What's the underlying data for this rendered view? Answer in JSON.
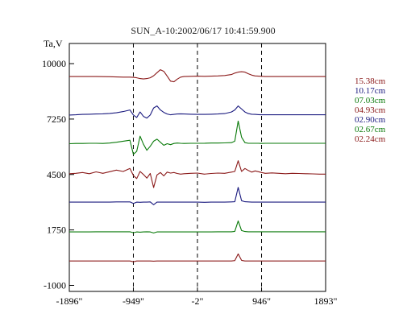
{
  "chart_data": {
    "type": "line",
    "title": "SUN_A-10:2002/06/17 10:41:59.900",
    "ylabel": "Ta,V",
    "xlim": [
      -1896,
      1893
    ],
    "ylim": [
      -1300,
      11000
    ],
    "yticks": [
      10000,
      7250,
      4500,
      1750,
      -1000
    ],
    "ytick_labels": [
      "10000",
      "7250",
      "4500",
      "1750",
      "-1000"
    ],
    "xticks": [
      -1896,
      -949,
      -2,
      946,
      1893
    ],
    "xtick_labels": [
      "-1896\"",
      "-949\"",
      "-2\"",
      "946\"",
      "1893\""
    ],
    "vlines": [
      -949,
      -2,
      946
    ],
    "x": [
      -1896,
      -1800,
      -1700,
      -1600,
      -1500,
      -1400,
      -1300,
      -1200,
      -1100,
      -1000,
      -949,
      -900,
      -850,
      -800,
      -750,
      -700,
      -650,
      -600,
      -550,
      -500,
      -450,
      -400,
      -350,
      -300,
      -250,
      -200,
      -100,
      -2,
      100,
      200,
      300,
      400,
      500,
      550,
      600,
      650,
      700,
      750,
      800,
      850,
      900,
      946,
      1000,
      1100,
      1200,
      1300,
      1400,
      1500,
      1600,
      1700,
      1800,
      1893
    ],
    "series": [
      {
        "name": "15.38cm",
        "color": "#8b1a1a",
        "values": [
          9360,
          9360,
          9360,
          9360,
          9360,
          9355,
          9350,
          9340,
          9330,
          9330,
          9320,
          9300,
          9260,
          9240,
          9260,
          9300,
          9400,
          9550,
          9700,
          9620,
          9380,
          9130,
          9100,
          9230,
          9330,
          9360,
          9370,
          9380,
          9370,
          9380,
          9390,
          9410,
          9460,
          9530,
          9580,
          9600,
          9580,
          9500,
          9430,
          9390,
          9380,
          9370,
          9360,
          9360,
          9360,
          9360,
          9360,
          9360,
          9360,
          9360,
          9360,
          9360
        ]
      },
      {
        "name": "10.17cm",
        "color": "#1a1a7f",
        "values": [
          7450,
          7460,
          7480,
          7490,
          7500,
          7510,
          7530,
          7560,
          7620,
          7700,
          7450,
          7330,
          7600,
          7380,
          7300,
          7450,
          7800,
          7900,
          7700,
          7580,
          7500,
          7460,
          7480,
          7500,
          7510,
          7500,
          7490,
          7480,
          7480,
          7490,
          7500,
          7520,
          7600,
          7700,
          7900,
          7750,
          7600,
          7520,
          7490,
          7480,
          7470,
          7460,
          7460,
          7460,
          7460,
          7460,
          7460,
          7460,
          7460,
          7460,
          7460,
          7460
        ]
      },
      {
        "name": "07.03cm",
        "color": "#0a7a0a",
        "values": [
          6030,
          6040,
          6040,
          6050,
          6050,
          6040,
          6060,
          6100,
          6150,
          6200,
          5500,
          5650,
          6400,
          6000,
          5700,
          5900,
          6150,
          6250,
          6100,
          5950,
          6030,
          5980,
          6040,
          6060,
          6050,
          6040,
          6050,
          6050,
          6050,
          6060,
          6060,
          6070,
          6080,
          6150,
          7150,
          6350,
          6080,
          6050,
          6050,
          6050,
          6050,
          6040,
          6050,
          6050,
          6050,
          6050,
          6050,
          6050,
          6050,
          6050,
          6050,
          6050
        ]
      },
      {
        "name": "04.93cm",
        "color": "#8b1a1a",
        "values": [
          4540,
          4560,
          4600,
          4540,
          4630,
          4560,
          4640,
          4720,
          4650,
          4800,
          4450,
          4300,
          4650,
          4500,
          4320,
          4550,
          3850,
          4480,
          4600,
          4430,
          4620,
          4570,
          4600,
          4550,
          4520,
          4540,
          4560,
          4570,
          4520,
          4550,
          4570,
          4560,
          4620,
          4650,
          5180,
          4650,
          4800,
          4700,
          4620,
          4680,
          4640,
          4600,
          4560,
          4580,
          4560,
          4540,
          4560,
          4550,
          4540,
          4530,
          4520,
          4520
        ]
      },
      {
        "name": "02.90cm",
        "color": "#1a1a7f",
        "values": [
          3130,
          3130,
          3130,
          3130,
          3130,
          3130,
          3130,
          3140,
          3140,
          3140,
          3060,
          3130,
          3120,
          3130,
          3130,
          3140,
          3000,
          3130,
          3130,
          3130,
          3130,
          3130,
          3130,
          3130,
          3130,
          3130,
          3130,
          3130,
          3120,
          3130,
          3130,
          3130,
          3140,
          3150,
          3860,
          3200,
          3150,
          3140,
          3130,
          3130,
          3130,
          3130,
          3130,
          3130,
          3130,
          3130,
          3130,
          3130,
          3130,
          3130,
          3130,
          3130
        ]
      },
      {
        "name": "02.67cm",
        "color": "#0a7a0a",
        "values": [
          1650,
          1650,
          1650,
          1650,
          1660,
          1660,
          1660,
          1660,
          1660,
          1660,
          1610,
          1650,
          1640,
          1650,
          1660,
          1650,
          1600,
          1650,
          1650,
          1650,
          1650,
          1650,
          1650,
          1650,
          1650,
          1650,
          1650,
          1650,
          1650,
          1650,
          1660,
          1660,
          1660,
          1680,
          2200,
          1720,
          1670,
          1660,
          1660,
          1660,
          1660,
          1660,
          1660,
          1660,
          1660,
          1660,
          1660,
          1660,
          1660,
          1660,
          1660,
          1660
        ]
      },
      {
        "name": "02.24cm",
        "color": "#8b1a1a",
        "values": [
          210,
          210,
          210,
          210,
          210,
          210,
          210,
          210,
          210,
          210,
          170,
          210,
          210,
          210,
          210,
          210,
          200,
          210,
          210,
          210,
          210,
          210,
          210,
          210,
          210,
          210,
          210,
          210,
          210,
          210,
          210,
          210,
          210,
          230,
          560,
          240,
          210,
          210,
          210,
          210,
          210,
          210,
          210,
          210,
          210,
          210,
          210,
          210,
          210,
          210,
          210,
          210
        ]
      }
    ]
  }
}
